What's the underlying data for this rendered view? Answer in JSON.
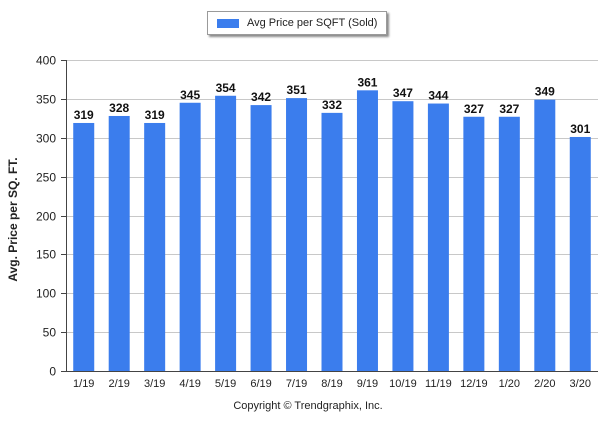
{
  "chart_data": {
    "type": "bar",
    "categories": [
      "1/19",
      "2/19",
      "3/19",
      "4/19",
      "5/19",
      "6/19",
      "7/19",
      "8/19",
      "9/19",
      "10/19",
      "11/19",
      "12/19",
      "1/20",
      "2/20",
      "3/20"
    ],
    "series": [
      {
        "name": "Avg Price per SQFT (Sold)",
        "values": [
          319,
          328,
          319,
          345,
          354,
          342,
          351,
          332,
          361,
          347,
          344,
          327,
          327,
          349,
          301
        ]
      }
    ],
    "ylabel": "Avg. Price per SQ. FT.",
    "xlabel": "",
    "ylim": [
      0,
      400
    ],
    "yticks": [
      0,
      50,
      100,
      150,
      200,
      250,
      300,
      350,
      400
    ],
    "grid": true,
    "legend_placement": "top-center",
    "data_labels": true,
    "colors": {
      "bar": "#3b7ded",
      "grid": "#c8c8c8",
      "axis": "#444444"
    }
  },
  "legend": {
    "label": "Avg Price per SQFT (Sold)"
  },
  "footer": {
    "copyright": "Copyright © Trendgraphix, Inc."
  }
}
